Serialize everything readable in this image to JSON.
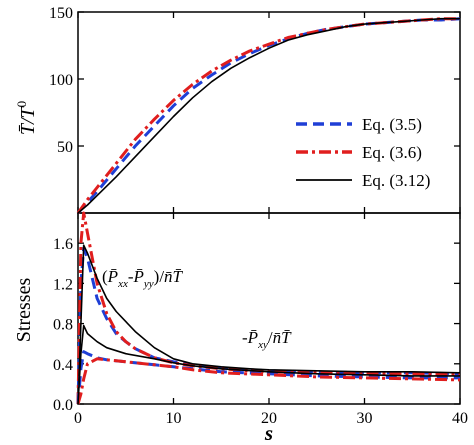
{
  "chart_data": [
    {
      "type": "line",
      "panel": "top",
      "ylabel": "T̄/T⁰",
      "xlim": [
        0,
        40
      ],
      "ylim": [
        0,
        150
      ],
      "xticks": [
        0,
        10,
        20,
        30,
        40
      ],
      "yticks": [
        50,
        100,
        150
      ],
      "ytick_labels": [
        "50",
        "100",
        "150"
      ],
      "legend_position": "right",
      "series": [
        {
          "name": "Eq. (3.5)",
          "color": "#1f3fd6",
          "dash": "dashed",
          "x": [
            0,
            1,
            2,
            4,
            6,
            8,
            10,
            12,
            14,
            16,
            18,
            20,
            22,
            24,
            26,
            28,
            30,
            32,
            34,
            36,
            38,
            40
          ],
          "y": [
            0,
            8,
            16,
            33,
            50,
            65,
            80,
            93,
            103,
            112,
            119,
            125,
            130,
            134,
            137,
            139,
            141,
            142,
            143,
            144,
            144,
            145
          ]
        },
        {
          "name": "Eq. (3.6)",
          "color": "#e01e1e",
          "dash": "dashdot",
          "x": [
            0,
            1,
            2,
            4,
            6,
            8,
            10,
            12,
            14,
            16,
            18,
            20,
            22,
            24,
            26,
            28,
            30,
            32,
            34,
            36,
            38,
            40
          ],
          "y": [
            0,
            10,
            19,
            37,
            55,
            70,
            84,
            96,
            106,
            114,
            121,
            126,
            131,
            134,
            137,
            139,
            141,
            142,
            143,
            144,
            145,
            145
          ]
        },
        {
          "name": "Eq. (3.12)",
          "color": "#000000",
          "dash": "solid",
          "x": [
            0,
            1,
            2,
            4,
            6,
            8,
            10,
            12,
            14,
            16,
            18,
            20,
            22,
            24,
            26,
            28,
            30,
            32,
            34,
            36,
            38,
            40
          ],
          "y": [
            0,
            6,
            13,
            27,
            42,
            57,
            72,
            86,
            98,
            108,
            116,
            123,
            129,
            133,
            136,
            139,
            141,
            142,
            143,
            144,
            145,
            145
          ]
        }
      ]
    },
    {
      "type": "line",
      "panel": "bottom",
      "xlabel": "s",
      "ylabel": "Stresses",
      "xlim": [
        0,
        40
      ],
      "ylim": [
        0,
        1.9
      ],
      "xticks": [
        0,
        10,
        20,
        30,
        40
      ],
      "xtick_labels": [
        "0",
        "10",
        "20",
        "30",
        "40"
      ],
      "yticks": [
        0.0,
        0.4,
        0.8,
        1.2,
        1.6
      ],
      "ytick_labels": [
        "0.0",
        "0.4",
        "0.8",
        "1.2",
        "1.6"
      ],
      "annotations": [
        "(P̄xx-P̄yy)/n̄T̄",
        "-P̄xy/n̄T̄"
      ],
      "series": [
        {
          "name": "Eq. (3.5) normal",
          "color": "#1f3fd6",
          "dash": "dashed",
          "x": [
            0,
            0.3,
            0.6,
            1,
            2,
            3,
            4,
            5,
            6,
            8,
            10,
            12,
            15,
            18,
            20,
            25,
            30,
            35,
            40
          ],
          "y": [
            0,
            1.2,
            1.55,
            1.45,
            1.05,
            0.85,
            0.7,
            0.62,
            0.55,
            0.46,
            0.42,
            0.39,
            0.36,
            0.34,
            0.33,
            0.32,
            0.31,
            0.31,
            0.3
          ]
        },
        {
          "name": "Eq. (3.6) normal",
          "color": "#e01e1e",
          "dash": "dashdot",
          "x": [
            0,
            0.3,
            0.6,
            1,
            2,
            3,
            4,
            5,
            6,
            8,
            10,
            12,
            15,
            18,
            20,
            25,
            30,
            35,
            40
          ],
          "y": [
            0,
            1.6,
            1.9,
            1.7,
            1.2,
            0.9,
            0.72,
            0.62,
            0.55,
            0.46,
            0.41,
            0.38,
            0.35,
            0.33,
            0.32,
            0.31,
            0.3,
            0.3,
            0.29
          ]
        },
        {
          "name": "Eq. (3.12) normal",
          "color": "#000000",
          "dash": "solid",
          "x": [
            0,
            0.3,
            0.6,
            1,
            2,
            3,
            4,
            5,
            6,
            8,
            10,
            12,
            15,
            18,
            20,
            25,
            30,
            35,
            40
          ],
          "y": [
            0,
            0.8,
            1.58,
            1.5,
            1.25,
            1.05,
            0.92,
            0.82,
            0.72,
            0.56,
            0.45,
            0.4,
            0.37,
            0.35,
            0.34,
            0.33,
            0.32,
            0.32,
            0.31
          ]
        },
        {
          "name": "Eq. (3.5) shear",
          "color": "#1f3fd6",
          "dash": "dashed",
          "x": [
            0,
            0.3,
            0.6,
            1,
            2,
            3,
            5,
            8,
            10,
            12,
            15,
            20,
            25,
            30,
            35,
            40
          ],
          "y": [
            0,
            0.35,
            0.52,
            0.5,
            0.46,
            0.44,
            0.42,
            0.39,
            0.37,
            0.35,
            0.32,
            0.3,
            0.28,
            0.27,
            0.26,
            0.26
          ]
        },
        {
          "name": "Eq. (3.6) shear",
          "color": "#e01e1e",
          "dash": "dashdot",
          "x": [
            0,
            0.3,
            0.6,
            1,
            2,
            3,
            5,
            8,
            10,
            12,
            15,
            20,
            25,
            30,
            35,
            40
          ],
          "y": [
            0,
            0.1,
            0.25,
            0.4,
            0.45,
            0.44,
            0.42,
            0.39,
            0.37,
            0.34,
            0.31,
            0.29,
            0.27,
            0.26,
            0.25,
            0.24
          ]
        },
        {
          "name": "Eq. (3.12) shear",
          "color": "#000000",
          "dash": "solid",
          "x": [
            0,
            0.3,
            0.6,
            1,
            2,
            3,
            5,
            8,
            10,
            12,
            15,
            20,
            25,
            30,
            35,
            40
          ],
          "y": [
            0,
            0.5,
            0.78,
            0.7,
            0.62,
            0.56,
            0.5,
            0.45,
            0.41,
            0.38,
            0.35,
            0.32,
            0.3,
            0.29,
            0.28,
            0.28
          ]
        }
      ]
    }
  ]
}
